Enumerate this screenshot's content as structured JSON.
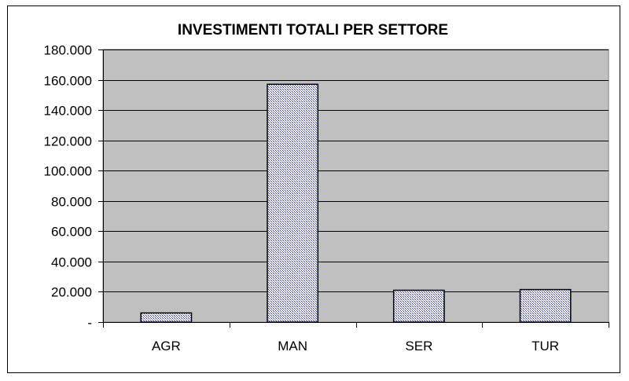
{
  "chart_data": {
    "type": "bar",
    "title": "INVESTIMENTI TOTALI PER SETTORE",
    "categories": [
      "AGR",
      "MAN",
      "SER",
      "TUR"
    ],
    "values": [
      6000,
      157000,
      21000,
      21500
    ],
    "ylim": [
      0,
      180000
    ],
    "y_ticks": [
      0,
      20000,
      40000,
      60000,
      80000,
      100000,
      120000,
      140000,
      160000,
      180000
    ],
    "y_tick_labels": [
      "-",
      "20.000",
      "40.000",
      "60.000",
      "80.000",
      "100.000",
      "120.000",
      "140.000",
      "160.000",
      "180.000"
    ],
    "grid": true,
    "legend": "none",
    "colors": {
      "plot_background": "#c0c0c0",
      "bar_fill": "#9999ff",
      "bar_outline": "#000000",
      "gridline": "#000000"
    }
  }
}
